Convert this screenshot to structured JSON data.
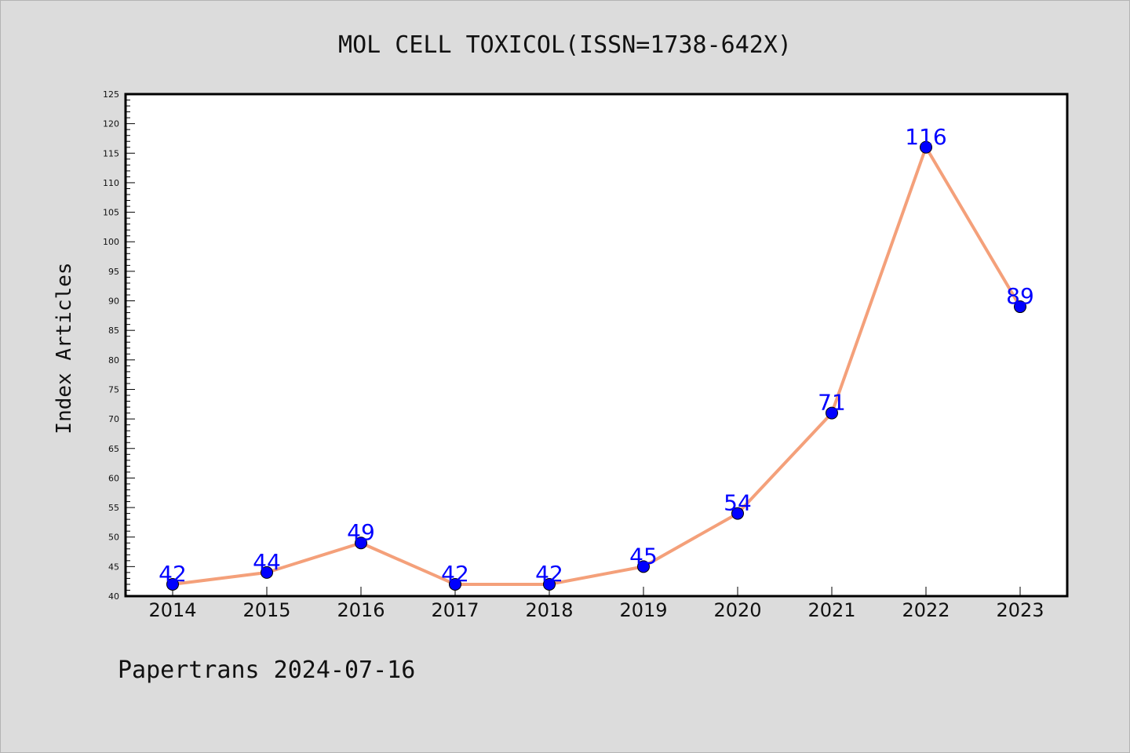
{
  "chart_data": {
    "type": "line",
    "title": "MOL CELL TOXICOL(ISSN=1738-642X)",
    "xlabel": "",
    "ylabel": "Index Articles",
    "categories": [
      "2014",
      "2015",
      "2016",
      "2017",
      "2018",
      "2019",
      "2020",
      "2021",
      "2022",
      "2023"
    ],
    "series": [
      {
        "values": [
          42,
          44,
          49,
          42,
          42,
          45,
          54,
          71,
          116,
          89
        ]
      }
    ],
    "ylim": [
      40,
      125
    ],
    "ytick_step": 5,
    "yminor_step": 1,
    "line_color": "#f4a07a",
    "marker_color": "#0000ff",
    "label_color": "#0000ff",
    "grid": false,
    "legend": "none"
  },
  "footer": "Papertrans 2024-07-16"
}
